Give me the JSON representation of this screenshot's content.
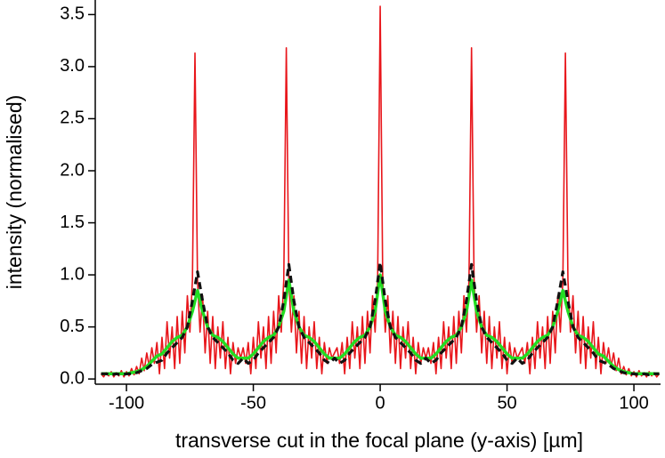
{
  "chart_data": {
    "type": "line",
    "xlabel": "transverse cut in the focal plane (y-axis) [µm]",
    "ylabel": "intensity (normalised)",
    "xlim": [
      -112.3,
      110.5
    ],
    "ylim": [
      -0.05,
      3.64
    ],
    "xticks": [
      -100,
      -50,
      0,
      50,
      100
    ],
    "yticks": [
      {
        "value": 0,
        "label": "0.0"
      },
      0.5,
      {
        "value": 1,
        "label": "1.0"
      },
      1.5,
      {
        "value": 2,
        "label": "2.0"
      },
      2.5,
      {
        "value": 3,
        "label": "3.0"
      },
      3.5
    ],
    "series": [
      {
        "color": "#e8161b",
        "style": "solid",
        "x": [
          -110,
          -109,
          -108,
          -107,
          -106,
          -105,
          -104,
          -103,
          -102,
          -101,
          -100,
          -99,
          -98,
          -97,
          -96,
          -95,
          -94,
          -93,
          -92,
          -91,
          -90,
          -89,
          -88,
          -87,
          -86,
          -85,
          -84,
          -83,
          -82,
          -81,
          -80,
          -79,
          -78,
          -77,
          -76,
          -75,
          -74,
          -73,
          -72,
          -71,
          -70,
          -69,
          -68,
          -67,
          -66,
          -65,
          -64,
          -63,
          -62,
          -61,
          -60,
          -59,
          -58,
          -57,
          -56,
          -55,
          -54,
          -53,
          -52,
          -51,
          -50,
          -49,
          -48,
          -47,
          -46,
          -45,
          -44,
          -43,
          -42,
          -41,
          -40,
          -39,
          -38,
          -37,
          -36,
          -35,
          -34,
          -33,
          -32,
          -31,
          -30,
          -29,
          -28,
          -27,
          -26,
          -25,
          -24,
          -23,
          -22,
          -21,
          -20,
          -19,
          -18,
          -17,
          -16,
          -15,
          -14,
          -13,
          -12,
          -11,
          -10,
          -9,
          -8,
          -7,
          -6,
          -5,
          -4,
          -3,
          -2,
          -1,
          0,
          1,
          2,
          3,
          4,
          5,
          6,
          7,
          8,
          9,
          10,
          11,
          12,
          13,
          14,
          15,
          16,
          17,
          18,
          19,
          20,
          21,
          22,
          23,
          24,
          25,
          26,
          27,
          28,
          29,
          30,
          31,
          32,
          33,
          34,
          35,
          36,
          37,
          38,
          39,
          40,
          41,
          42,
          43,
          44,
          45,
          46,
          47,
          48,
          49,
          50,
          51,
          52,
          53,
          54,
          55,
          56,
          57,
          58,
          59,
          60,
          61,
          62,
          63,
          64,
          65,
          66,
          67,
          68,
          69,
          70,
          71,
          72,
          73,
          74,
          75,
          76,
          77,
          78,
          79,
          80,
          81,
          82,
          83,
          84,
          85,
          86,
          87,
          88,
          89,
          90,
          91,
          92,
          93,
          94,
          95,
          96,
          97,
          98,
          99,
          100,
          101,
          102,
          103,
          104,
          105,
          106,
          107,
          108,
          109,
          110
        ],
        "values": [
          0.05,
          0.02,
          0.06,
          0.03,
          0.07,
          0.02,
          0.06,
          0.03,
          0.08,
          0.02,
          0.07,
          0.03,
          0.1,
          0.04,
          0.12,
          0.05,
          0.2,
          0.08,
          0.25,
          0.12,
          0.3,
          0.15,
          0.35,
          0.05,
          0.4,
          0.1,
          0.55,
          0.2,
          0.5,
          0.1,
          0.6,
          0.15,
          0.65,
          0.25,
          0.8,
          0.45,
          0.95,
          3.13,
          0.95,
          0.45,
          0.8,
          0.25,
          0.65,
          0.15,
          0.6,
          0.1,
          0.5,
          0.2,
          0.55,
          0.1,
          0.4,
          0.05,
          0.35,
          0.15,
          0.3,
          0.2,
          0.3,
          0.15,
          0.35,
          0.05,
          0.4,
          0.1,
          0.55,
          0.2,
          0.5,
          0.1,
          0.6,
          0.15,
          0.65,
          0.25,
          0.8,
          0.45,
          0.95,
          3.18,
          0.95,
          0.45,
          0.8,
          0.25,
          0.65,
          0.15,
          0.6,
          0.1,
          0.5,
          0.2,
          0.55,
          0.1,
          0.4,
          0.05,
          0.35,
          0.15,
          0.3,
          0.2,
          0.25,
          0.3,
          0.15,
          0.35,
          0.05,
          0.4,
          0.1,
          0.55,
          0.2,
          0.5,
          0.1,
          0.6,
          0.15,
          0.65,
          0.25,
          0.8,
          0.45,
          0.95,
          3.58,
          0.95,
          0.45,
          0.8,
          0.25,
          0.65,
          0.15,
          0.6,
          0.1,
          0.5,
          0.2,
          0.55,
          0.1,
          0.4,
          0.05,
          0.35,
          0.15,
          0.3,
          0.2,
          0.3,
          0.15,
          0.35,
          0.05,
          0.4,
          0.1,
          0.55,
          0.2,
          0.5,
          0.1,
          0.6,
          0.15,
          0.65,
          0.25,
          0.8,
          0.45,
          0.95,
          3.18,
          0.95,
          0.45,
          0.8,
          0.25,
          0.65,
          0.15,
          0.6,
          0.1,
          0.5,
          0.2,
          0.55,
          0.1,
          0.4,
          0.05,
          0.35,
          0.15,
          0.3,
          0.2,
          0.25,
          0.3,
          0.15,
          0.35,
          0.05,
          0.4,
          0.1,
          0.55,
          0.2,
          0.5,
          0.1,
          0.6,
          0.15,
          0.65,
          0.25,
          0.8,
          0.45,
          0.95,
          3.13,
          0.95,
          0.45,
          0.8,
          0.25,
          0.65,
          0.15,
          0.6,
          0.1,
          0.5,
          0.2,
          0.55,
          0.1,
          0.4,
          0.05,
          0.35,
          0.15,
          0.3,
          0.12,
          0.25,
          0.08,
          0.2,
          0.05,
          0.12,
          0.04,
          0.1,
          0.03,
          0.07,
          0.02,
          0.08,
          0.03,
          0.06,
          0.02,
          0.07,
          0.03,
          0.06,
          0.02,
          0.05
        ]
      },
      {
        "color": "#22dd22",
        "style": "solid",
        "x": [
          -110,
          -108,
          -106,
          -104,
          -102,
          -100,
          -98,
          -96,
          -94,
          -92,
          -90,
          -88,
          -86,
          -84,
          -82,
          -80,
          -78,
          -76,
          -74,
          -72,
          -70,
          -68,
          -66,
          -64,
          -62,
          -60,
          -58,
          -56,
          -54,
          -52,
          -50,
          -48,
          -46,
          -44,
          -42,
          -40,
          -38,
          -36,
          -34,
          -32,
          -30,
          -28,
          -26,
          -24,
          -22,
          -20,
          -18,
          -16,
          -14,
          -12,
          -10,
          -8,
          -6,
          -4,
          -2,
          0,
          2,
          4,
          6,
          8,
          10,
          12,
          14,
          16,
          18,
          20,
          22,
          24,
          26,
          28,
          30,
          32,
          34,
          36,
          38,
          40,
          42,
          44,
          46,
          48,
          50,
          52,
          54,
          56,
          58,
          60,
          62,
          64,
          66,
          68,
          70,
          72,
          74,
          76,
          78,
          80,
          82,
          84,
          86,
          88,
          90,
          92,
          94,
          96,
          98,
          100,
          102,
          104,
          106,
          108,
          110
        ],
        "values": [
          0.05,
          0.05,
          0.05,
          0.05,
          0.05,
          0.05,
          0.06,
          0.07,
          0.09,
          0.12,
          0.17,
          0.22,
          0.24,
          0.3,
          0.36,
          0.4,
          0.42,
          0.5,
          0.65,
          0.85,
          0.65,
          0.5,
          0.42,
          0.4,
          0.36,
          0.3,
          0.24,
          0.2,
          0.2,
          0.2,
          0.24,
          0.3,
          0.36,
          0.4,
          0.42,
          0.5,
          0.65,
          0.95,
          0.65,
          0.5,
          0.42,
          0.4,
          0.36,
          0.3,
          0.24,
          0.2,
          0.2,
          0.2,
          0.24,
          0.3,
          0.36,
          0.4,
          0.42,
          0.5,
          0.65,
          1.0,
          0.65,
          0.5,
          0.42,
          0.4,
          0.36,
          0.3,
          0.24,
          0.2,
          0.2,
          0.2,
          0.24,
          0.3,
          0.36,
          0.4,
          0.42,
          0.5,
          0.65,
          0.95,
          0.65,
          0.5,
          0.42,
          0.4,
          0.36,
          0.3,
          0.24,
          0.2,
          0.2,
          0.2,
          0.24,
          0.3,
          0.36,
          0.4,
          0.42,
          0.5,
          0.65,
          0.85,
          0.65,
          0.5,
          0.42,
          0.4,
          0.36,
          0.3,
          0.24,
          0.22,
          0.17,
          0.12,
          0.09,
          0.07,
          0.06,
          0.05,
          0.05,
          0.05,
          0.05,
          0.05,
          0.05
        ]
      },
      {
        "color": "#111111",
        "style": "dashed",
        "x": [
          -110,
          -108,
          -106,
          -104,
          -102,
          -100,
          -98,
          -96,
          -94,
          -92,
          -90,
          -88,
          -86,
          -84,
          -82,
          -80,
          -78,
          -76,
          -74,
          -72,
          -70,
          -68,
          -66,
          -64,
          -62,
          -60,
          -58,
          -56,
          -54,
          -52,
          -50,
          -48,
          -46,
          -44,
          -42,
          -40,
          -38,
          -36,
          -34,
          -32,
          -30,
          -28,
          -26,
          -24,
          -22,
          -20,
          -18,
          -16,
          -14,
          -12,
          -10,
          -8,
          -6,
          -4,
          -2,
          0,
          2,
          4,
          6,
          8,
          10,
          12,
          14,
          16,
          18,
          20,
          22,
          24,
          26,
          28,
          30,
          32,
          34,
          36,
          38,
          40,
          42,
          44,
          46,
          48,
          50,
          52,
          54,
          56,
          58,
          60,
          62,
          64,
          66,
          68,
          70,
          72,
          74,
          76,
          78,
          80,
          82,
          84,
          86,
          88,
          90,
          92,
          94,
          96,
          98,
          100,
          102,
          104,
          106,
          108,
          110
        ],
        "values": [
          0.05,
          0.05,
          0.04,
          0.05,
          0.04,
          0.05,
          0.05,
          0.06,
          0.08,
          0.1,
          0.14,
          0.16,
          0.18,
          0.25,
          0.3,
          0.35,
          0.4,
          0.5,
          0.75,
          1.03,
          0.75,
          0.5,
          0.4,
          0.35,
          0.3,
          0.25,
          0.18,
          0.15,
          0.2,
          0.15,
          0.18,
          0.25,
          0.3,
          0.35,
          0.4,
          0.5,
          0.75,
          1.1,
          0.75,
          0.5,
          0.4,
          0.35,
          0.3,
          0.25,
          0.18,
          0.15,
          0.2,
          0.15,
          0.18,
          0.25,
          0.3,
          0.35,
          0.4,
          0.5,
          0.75,
          1.12,
          0.75,
          0.5,
          0.4,
          0.35,
          0.3,
          0.25,
          0.18,
          0.15,
          0.2,
          0.15,
          0.18,
          0.25,
          0.3,
          0.35,
          0.4,
          0.5,
          0.75,
          1.1,
          0.75,
          0.5,
          0.4,
          0.35,
          0.3,
          0.25,
          0.18,
          0.15,
          0.2,
          0.15,
          0.18,
          0.25,
          0.3,
          0.35,
          0.4,
          0.5,
          0.75,
          1.03,
          0.75,
          0.5,
          0.4,
          0.35,
          0.3,
          0.25,
          0.18,
          0.16,
          0.14,
          0.1,
          0.08,
          0.06,
          0.05,
          0.05,
          0.04,
          0.05,
          0.04,
          0.05,
          0.05
        ]
      }
    ]
  }
}
